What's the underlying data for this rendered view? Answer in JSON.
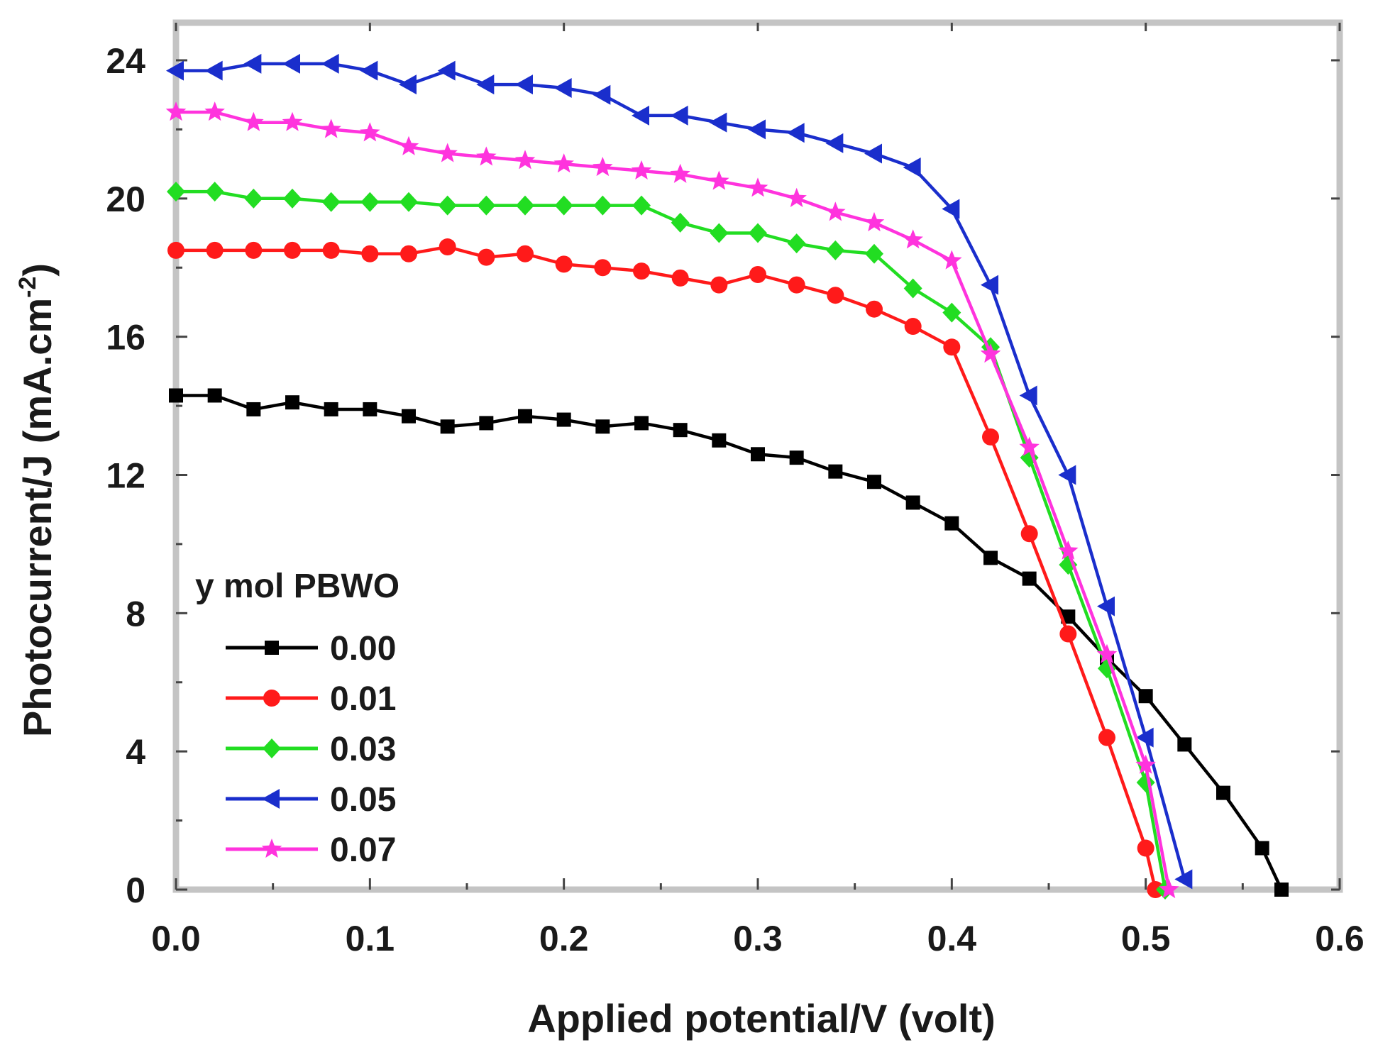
{
  "chart_data": {
    "type": "line",
    "title": "",
    "xlabel": "Applied potential/V (volt)",
    "ylabel": {
      "main": "Photocurrent/J (mA.cm",
      "superscript": "-2",
      "close": ")"
    },
    "xlim": [
      0.0,
      0.6
    ],
    "ylim": [
      0,
      24
    ],
    "x_ticks": [
      "0.0",
      "0.1",
      "0.2",
      "0.3",
      "0.4",
      "0.5",
      "0.6"
    ],
    "y_ticks": [
      "0",
      "4",
      "8",
      "12",
      "16",
      "20",
      "24"
    ],
    "legend": {
      "title": "y mol PBWO",
      "placement": "bottom-left"
    },
    "series": [
      {
        "name": "0.00",
        "color": "#000000",
        "marker": "square",
        "x": [
          0.0,
          0.02,
          0.04,
          0.06,
          0.08,
          0.1,
          0.12,
          0.14,
          0.16,
          0.18,
          0.2,
          0.22,
          0.24,
          0.26,
          0.28,
          0.3,
          0.32,
          0.34,
          0.36,
          0.38,
          0.4,
          0.42,
          0.44,
          0.46,
          0.48,
          0.5,
          0.52,
          0.54,
          0.56,
          0.57
        ],
        "y": [
          14.3,
          14.3,
          13.9,
          14.1,
          13.9,
          13.9,
          13.7,
          13.4,
          13.5,
          13.7,
          13.6,
          13.4,
          13.5,
          13.3,
          13.0,
          12.6,
          12.5,
          12.1,
          11.8,
          11.2,
          10.6,
          9.6,
          9.0,
          7.9,
          6.7,
          5.6,
          4.2,
          2.8,
          1.2,
          0.0
        ]
      },
      {
        "name": "0.01",
        "color": "#ff1a1a",
        "marker": "circle",
        "x": [
          0.0,
          0.02,
          0.04,
          0.06,
          0.08,
          0.1,
          0.12,
          0.14,
          0.16,
          0.18,
          0.2,
          0.22,
          0.24,
          0.26,
          0.28,
          0.3,
          0.32,
          0.34,
          0.36,
          0.38,
          0.4,
          0.42,
          0.44,
          0.46,
          0.48,
          0.5,
          0.505
        ],
        "y": [
          18.5,
          18.5,
          18.5,
          18.5,
          18.5,
          18.4,
          18.4,
          18.6,
          18.3,
          18.4,
          18.1,
          18.0,
          17.9,
          17.7,
          17.5,
          17.8,
          17.5,
          17.2,
          16.8,
          16.3,
          15.7,
          13.1,
          10.3,
          7.4,
          4.4,
          1.2,
          0.0
        ]
      },
      {
        "name": "0.03",
        "color": "#22dd22",
        "marker": "diamond",
        "x": [
          0.0,
          0.02,
          0.04,
          0.06,
          0.08,
          0.1,
          0.12,
          0.14,
          0.16,
          0.18,
          0.2,
          0.22,
          0.24,
          0.26,
          0.28,
          0.3,
          0.32,
          0.34,
          0.36,
          0.38,
          0.4,
          0.42,
          0.44,
          0.46,
          0.48,
          0.5,
          0.51
        ],
        "y": [
          20.2,
          20.2,
          20.0,
          20.0,
          19.9,
          19.9,
          19.9,
          19.8,
          19.8,
          19.8,
          19.8,
          19.8,
          19.8,
          19.3,
          19.0,
          19.0,
          18.7,
          18.5,
          18.4,
          17.4,
          16.7,
          15.7,
          12.5,
          9.4,
          6.4,
          3.1,
          0.0
        ]
      },
      {
        "name": "0.05",
        "color": "#1a2ecc",
        "marker": "triangle-left",
        "x": [
          0.0,
          0.02,
          0.04,
          0.06,
          0.08,
          0.1,
          0.12,
          0.14,
          0.16,
          0.18,
          0.2,
          0.22,
          0.24,
          0.26,
          0.28,
          0.3,
          0.32,
          0.34,
          0.36,
          0.38,
          0.4,
          0.42,
          0.44,
          0.46,
          0.48,
          0.5,
          0.52
        ],
        "y": [
          23.7,
          23.7,
          23.9,
          23.9,
          23.9,
          23.7,
          23.3,
          23.7,
          23.3,
          23.3,
          23.2,
          23.0,
          22.4,
          22.4,
          22.2,
          22.0,
          21.9,
          21.6,
          21.3,
          20.9,
          19.7,
          17.5,
          14.3,
          12.0,
          8.2,
          4.4,
          0.3
        ]
      },
      {
        "name": "0.07",
        "color": "#ff33dd",
        "marker": "star",
        "x": [
          0.0,
          0.02,
          0.04,
          0.06,
          0.08,
          0.1,
          0.12,
          0.14,
          0.16,
          0.18,
          0.2,
          0.22,
          0.24,
          0.26,
          0.28,
          0.3,
          0.32,
          0.34,
          0.36,
          0.38,
          0.4,
          0.42,
          0.44,
          0.46,
          0.48,
          0.5,
          0.512
        ],
        "y": [
          22.5,
          22.5,
          22.2,
          22.2,
          22.0,
          21.9,
          21.5,
          21.3,
          21.2,
          21.1,
          21.0,
          20.9,
          20.8,
          20.7,
          20.5,
          20.3,
          20.0,
          19.6,
          19.3,
          18.8,
          18.2,
          15.5,
          12.8,
          9.8,
          6.8,
          3.6,
          0.0
        ]
      }
    ]
  }
}
